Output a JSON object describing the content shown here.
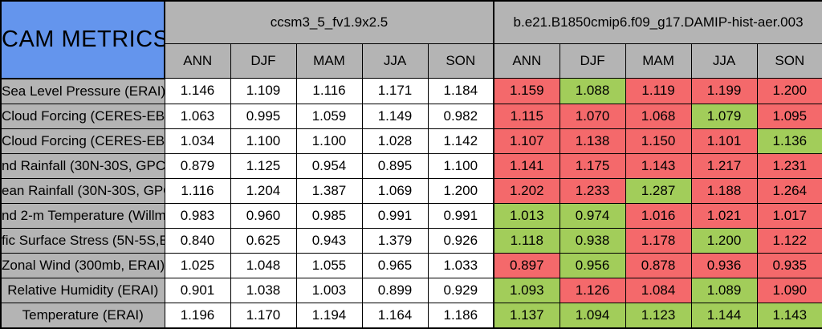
{
  "title": "CAM METRICS",
  "colors": {
    "red": "#F4696B",
    "green": "#A2CD5A",
    "header_gray": "#B4B4B4",
    "title_blue": "#6495ED"
  },
  "chart_data": {
    "type": "table",
    "title": "CAM METRICS",
    "groups": [
      {
        "name": "ccsm3_5_fv1.9x2.5",
        "columns": [
          "ANN",
          "DJF",
          "MAM",
          "JJA",
          "SON"
        ]
      },
      {
        "name": "b.e21.B1850cmip6.f09_g17.DAMIP-hist-aer.003",
        "columns": [
          "ANN",
          "DJF",
          "MAM",
          "JJA",
          "SON"
        ]
      }
    ],
    "rows": [
      {
        "label": "Sea Level Pressure (ERAI)",
        "left": [
          "1.146",
          "1.109",
          "1.116",
          "1.171",
          "1.184"
        ],
        "right": [
          {
            "v": "1.159",
            "s": "red"
          },
          {
            "v": "1.088",
            "s": "green"
          },
          {
            "v": "1.119",
            "s": "red"
          },
          {
            "v": "1.199",
            "s": "red"
          },
          {
            "v": "1.200",
            "s": "red"
          }
        ]
      },
      {
        "label": "Cloud Forcing (CERES-EB",
        "left": [
          "1.063",
          "0.995",
          "1.059",
          "1.149",
          "0.982"
        ],
        "right": [
          {
            "v": "1.115",
            "s": "red"
          },
          {
            "v": "1.070",
            "s": "red"
          },
          {
            "v": "1.068",
            "s": "red"
          },
          {
            "v": "1.079",
            "s": "green"
          },
          {
            "v": "1.095",
            "s": "red"
          }
        ]
      },
      {
        "label": "Cloud Forcing (CERES-EB",
        "left": [
          "1.034",
          "1.100",
          "1.100",
          "1.028",
          "1.142"
        ],
        "right": [
          {
            "v": "1.107",
            "s": "red"
          },
          {
            "v": "1.138",
            "s": "red"
          },
          {
            "v": "1.150",
            "s": "red"
          },
          {
            "v": "1.101",
            "s": "red"
          },
          {
            "v": "1.136",
            "s": "green"
          }
        ]
      },
      {
        "label": "nd Rainfall (30N-30S, GPC",
        "left": [
          "0.879",
          "1.125",
          "0.954",
          "0.895",
          "1.100"
        ],
        "right": [
          {
            "v": "1.141",
            "s": "red"
          },
          {
            "v": "1.175",
            "s": "red"
          },
          {
            "v": "1.143",
            "s": "red"
          },
          {
            "v": "1.217",
            "s": "red"
          },
          {
            "v": "1.231",
            "s": "red"
          }
        ]
      },
      {
        "label": "ean Rainfall (30N-30S, GPC",
        "left": [
          "1.116",
          "1.204",
          "1.387",
          "1.069",
          "1.200"
        ],
        "right": [
          {
            "v": "1.202",
            "s": "red"
          },
          {
            "v": "1.233",
            "s": "red"
          },
          {
            "v": "1.287",
            "s": "green"
          },
          {
            "v": "1.188",
            "s": "red"
          },
          {
            "v": "1.264",
            "s": "red"
          }
        ]
      },
      {
        "label": "nd 2-m Temperature (Willmo",
        "left": [
          "0.983",
          "0.960",
          "0.985",
          "0.991",
          "0.991"
        ],
        "right": [
          {
            "v": "1.013",
            "s": "green"
          },
          {
            "v": "0.974",
            "s": "green"
          },
          {
            "v": "1.016",
            "s": "red"
          },
          {
            "v": "1.021",
            "s": "red"
          },
          {
            "v": "1.017",
            "s": "red"
          }
        ]
      },
      {
        "label": "fic Surface Stress (5N-5S,E",
        "left": [
          "0.840",
          "0.625",
          "0.943",
          "1.379",
          "0.926"
        ],
        "right": [
          {
            "v": "1.118",
            "s": "green"
          },
          {
            "v": "0.938",
            "s": "green"
          },
          {
            "v": "1.178",
            "s": "red"
          },
          {
            "v": "1.200",
            "s": "green"
          },
          {
            "v": "1.122",
            "s": "red"
          }
        ]
      },
      {
        "label": "Zonal Wind (300mb, ERAI)",
        "left": [
          "1.025",
          "1.048",
          "1.055",
          "0.965",
          "1.033"
        ],
        "right": [
          {
            "v": "0.897",
            "s": "red"
          },
          {
            "v": "0.956",
            "s": "green"
          },
          {
            "v": "0.878",
            "s": "red"
          },
          {
            "v": "0.936",
            "s": "red"
          },
          {
            "v": "0.935",
            "s": "red"
          }
        ]
      },
      {
        "label": "Relative Humidity (ERAI)",
        "left": [
          "0.901",
          "1.038",
          "1.003",
          "0.899",
          "0.929"
        ],
        "right": [
          {
            "v": "1.093",
            "s": "green"
          },
          {
            "v": "1.126",
            "s": "red"
          },
          {
            "v": "1.084",
            "s": "red"
          },
          {
            "v": "1.089",
            "s": "green"
          },
          {
            "v": "1.090",
            "s": "red"
          }
        ]
      },
      {
        "label": "Temperature (ERAI)",
        "left": [
          "1.196",
          "1.170",
          "1.194",
          "1.164",
          "1.186"
        ],
        "right": [
          {
            "v": "1.137",
            "s": "green"
          },
          {
            "v": "1.094",
            "s": "green"
          },
          {
            "v": "1.123",
            "s": "green"
          },
          {
            "v": "1.144",
            "s": "green"
          },
          {
            "v": "1.143",
            "s": "green"
          }
        ]
      }
    ]
  }
}
